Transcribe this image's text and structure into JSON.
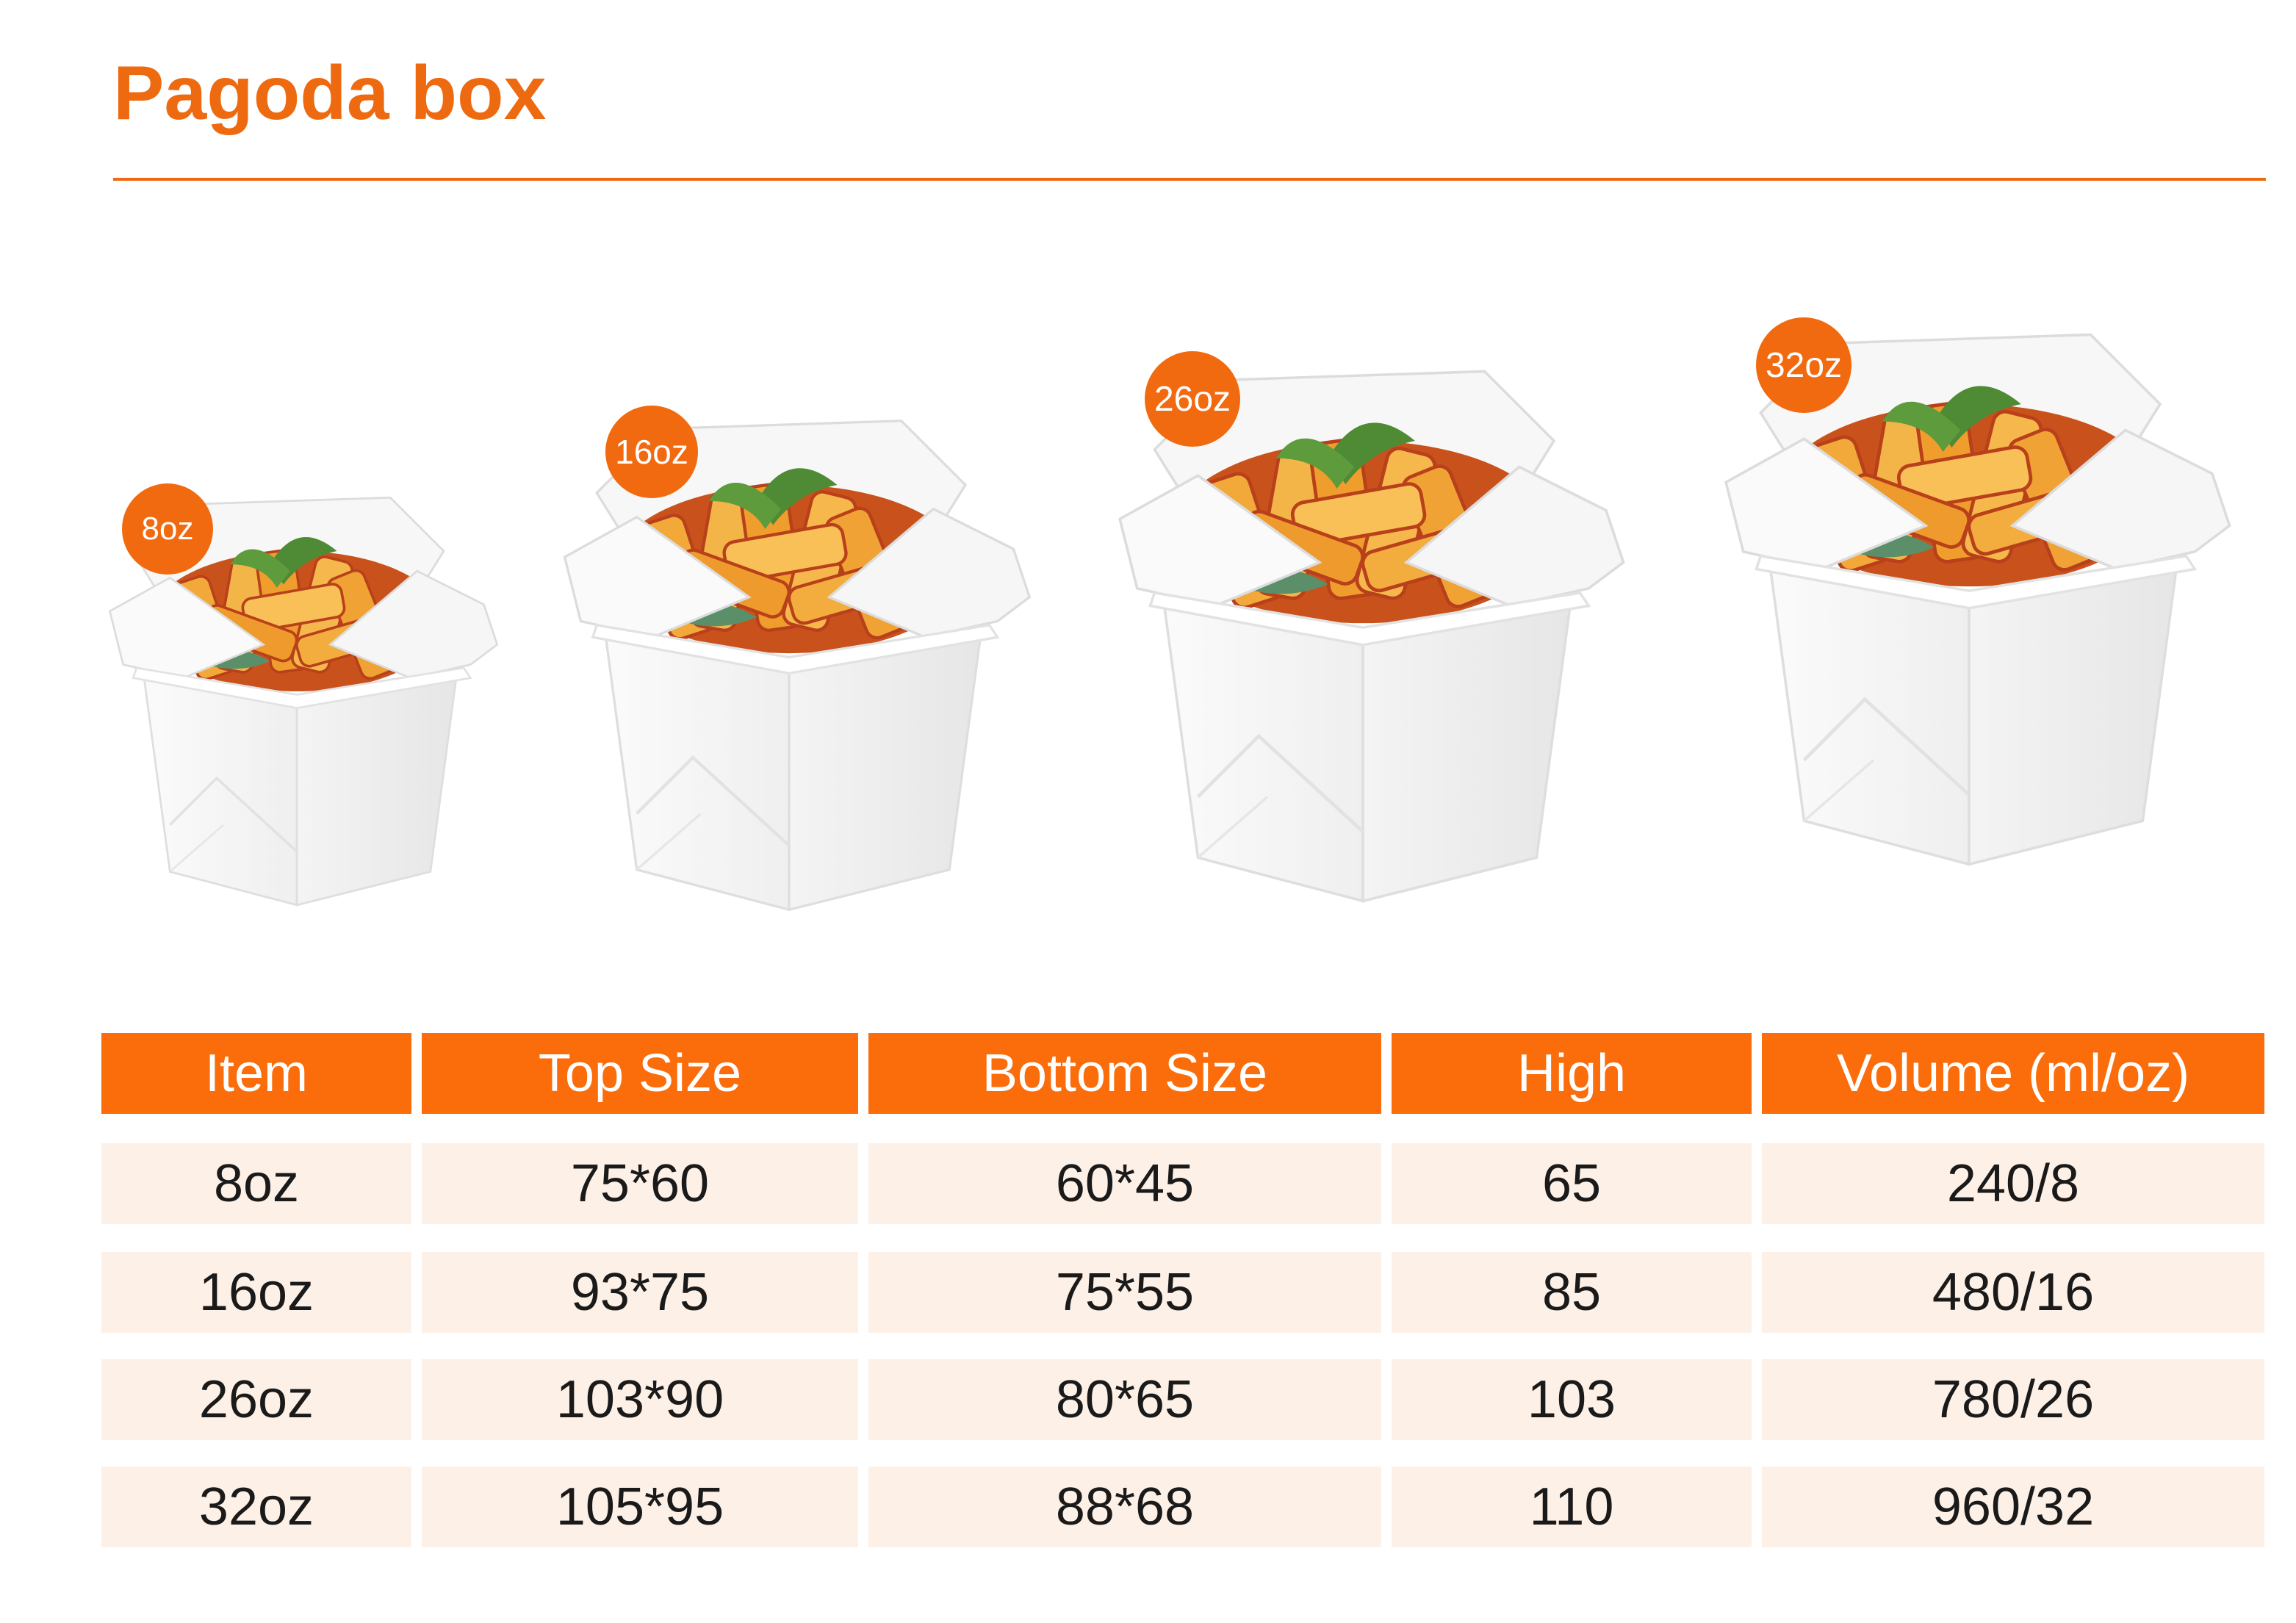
{
  "page": {
    "title": "Pagoda box"
  },
  "colors": {
    "accent": "#ee6a10",
    "header_bg": "#fb6c0b",
    "row_bg": "#fdf0e6",
    "text": "#1a1a1a"
  },
  "products": [
    {
      "badge": "8oz",
      "icon": "pagoda-box-with-pasta"
    },
    {
      "badge": "16oz",
      "icon": "pagoda-box-with-pasta"
    },
    {
      "badge": "26oz",
      "icon": "pagoda-box-with-pasta"
    },
    {
      "badge": "32oz",
      "icon": "pagoda-box-with-pasta"
    }
  ],
  "table": {
    "headers": [
      "Item",
      "Top Size",
      "Bottom Size",
      "High",
      "Volume (ml/oz)"
    ],
    "rows": [
      [
        "8oz",
        "75*60",
        "60*45",
        "65",
        "240/8"
      ],
      [
        "16oz",
        "93*75",
        "75*55",
        "85",
        "480/16"
      ],
      [
        "26oz",
        "103*90",
        "80*65",
        "103",
        "780/26"
      ],
      [
        "32oz",
        "105*95",
        "88*68",
        "110",
        "960/32"
      ]
    ]
  }
}
